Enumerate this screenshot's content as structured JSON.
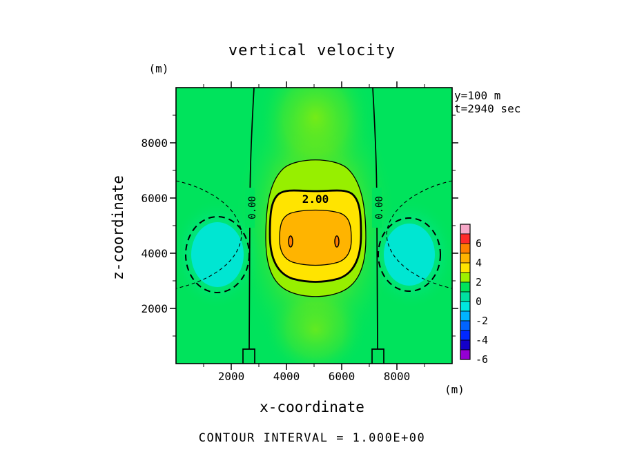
{
  "title": "vertical velocity",
  "info": {
    "line1": "y=100 m",
    "line2": "t=2940 sec"
  },
  "axes": {
    "x": {
      "label": "x-coordinate",
      "unit": "(m)",
      "ticks": [
        "2000",
        "4000",
        "6000",
        "8000"
      ]
    },
    "z": {
      "label": "z-coordinate",
      "unit": "(m)",
      "ticks_top_to_bottom": [
        "8000",
        "6000",
        "4000",
        "2000"
      ]
    }
  },
  "contour_labels": {
    "zero": "0.00",
    "two": "2.00"
  },
  "footer": {
    "contour_interval": "CONTOUR INTERVAL = 1.000E+00"
  },
  "colorbar": {
    "tick_labels": [
      "6",
      "4",
      "2",
      "0",
      "-2",
      "-4",
      "-6"
    ],
    "band_colors_top_to_bottom": [
      "#f7a8c8",
      "#ff2a2a",
      "#ff8000",
      "#ffb400",
      "#ffe400",
      "#9ef000",
      "#00e35c",
      "#00e0a0",
      "#00e8e0",
      "#00b4ff",
      "#0064ff",
      "#0028ff",
      "#1400c8",
      "#9400d3"
    ]
  },
  "chart_data": {
    "type": "heatmap",
    "subtype": "filled-contour",
    "title": "vertical velocity",
    "xlabel": "x-coordinate (m)",
    "ylabel": "z-coordinate (m)",
    "x_range": [
      0,
      10000
    ],
    "z_range": [
      0,
      10000
    ],
    "x_ticks": [
      2000,
      4000,
      6000,
      8000
    ],
    "z_ticks": [
      2000,
      4000,
      6000,
      8000
    ],
    "slice": "y=100 m",
    "time": "t=2940 sec",
    "contour_interval": 1.0,
    "colorbar_ticks": [
      6,
      4,
      2,
      0,
      -2,
      -4,
      -6
    ],
    "levels": [
      -7,
      -6,
      -5,
      -4,
      -3,
      -2,
      -1,
      0,
      1,
      2,
      3,
      4,
      5,
      6,
      7
    ],
    "band_colors_bottom_to_top": [
      "#9400d3",
      "#1400c8",
      "#0028ff",
      "#0064ff",
      "#00b4ff",
      "#00e8e0",
      "#00e0a0",
      "#00e35c",
      "#9ef000",
      "#ffe400",
      "#ffb400",
      "#ff8000",
      "#ff2a2a",
      "#f7a8c8"
    ],
    "negative_contours_dashed": true,
    "labeled_contours": [
      {
        "value": 0,
        "label": "0.00",
        "style": "solid",
        "x_m": [
          2700,
          7300
        ],
        "note": "two quasi-vertical zero contours flanking the central updraft, small step features near the surface"
      },
      {
        "value": 2,
        "label": "2.00",
        "style": "solid-thick",
        "x_m": [
          3400,
          6700
        ],
        "z_m": [
          3000,
          6400
        ]
      }
    ],
    "features": [
      {
        "name": "central updraft",
        "x_center_m": 5000,
        "z_center_m": 4400,
        "x_m": [
          3200,
          6900
        ],
        "z_m": [
          2500,
          7300
        ],
        "contours": [
          1,
          2,
          3
        ],
        "peak_value_band": "3 to 4"
      },
      {
        "name": "updraft inner maxima",
        "points_m": [
          [
            4150,
            4400
          ],
          [
            5800,
            4400
          ]
        ],
        "value_band": "4"
      },
      {
        "name": "left compensating downdraft",
        "x_m": [
          600,
          2400
        ],
        "z_m": [
          2800,
          5300
        ],
        "value_band": "-1 to -2"
      },
      {
        "name": "right compensating downdraft",
        "x_m": [
          7600,
          9400
        ],
        "z_m": [
          2800,
          5300
        ],
        "value_band": "-1 to -2"
      }
    ]
  }
}
